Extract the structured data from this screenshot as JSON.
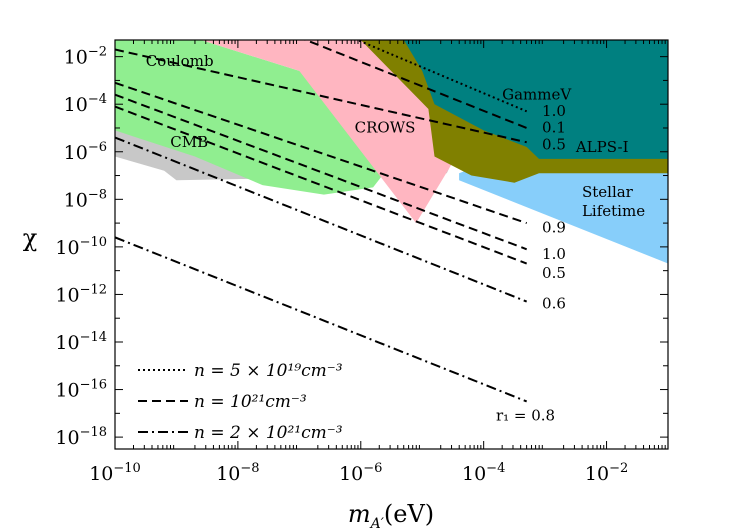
{
  "chart_data": {
    "type": "line",
    "xlabel": "m_{A'}(eV)",
    "ylabel": "χ",
    "xscale": "log",
    "yscale": "log",
    "xlim_log10": [
      -10,
      -1
    ],
    "ylim_log10": [
      -18.5,
      -1.3
    ],
    "xticks": [
      {
        "exp": -10,
        "base": "10",
        "sup": "−10"
      },
      {
        "exp": -8,
        "base": "10",
        "sup": "−8"
      },
      {
        "exp": -6,
        "base": "10",
        "sup": "−6"
      },
      {
        "exp": -4,
        "base": "10",
        "sup": "−4"
      },
      {
        "exp": -2,
        "base": "10",
        "sup": "−2"
      }
    ],
    "yticks": [
      {
        "exp": -2,
        "base": "10",
        "sup": "−2"
      },
      {
        "exp": -4,
        "base": "10",
        "sup": "−4"
      },
      {
        "exp": -6,
        "base": "10",
        "sup": "−6"
      },
      {
        "exp": -8,
        "base": "10",
        "sup": "−8"
      },
      {
        "exp": -10,
        "base": "10",
        "sup": "−10"
      },
      {
        "exp": -12,
        "base": "10",
        "sup": "−12"
      },
      {
        "exp": -14,
        "base": "10",
        "sup": "−14"
      },
      {
        "exp": -16,
        "base": "10",
        "sup": "−16"
      },
      {
        "exp": -18,
        "base": "10",
        "sup": "−18"
      }
    ],
    "regions": [
      {
        "name": "Stellar Lifetime",
        "color": "#87cefa",
        "label": [
          "Stellar",
          "Lifetime"
        ],
        "label_at": [
          -2.4,
          -7.9
        ],
        "polygon": [
          [
            -4.4,
            -6.9
          ],
          [
            -3.8,
            -6.3
          ],
          [
            -3.0,
            -6.0
          ],
          [
            -1.0,
            -6.0
          ],
          [
            -1.0,
            -10.7
          ],
          [
            -4.4,
            -7.2
          ]
        ]
      },
      {
        "name": "CMB",
        "color": "#c8c8c8",
        "label": [
          "CMB"
        ],
        "label_at": [
          -9.1,
          -5.8
        ],
        "polygon": [
          [
            -10,
            -3.6
          ],
          [
            -9.0,
            -3.3
          ],
          [
            -6.0,
            -3.7
          ],
          [
            -4.9,
            -4.2
          ],
          [
            -4.4,
            -5.8
          ],
          [
            -4.6,
            -6.9
          ],
          [
            -7.0,
            -7.1
          ],
          [
            -9.0,
            -7.2
          ],
          [
            -9.2,
            -6.8
          ],
          [
            -10,
            -6.2
          ]
        ]
      },
      {
        "name": "Coulomb",
        "color": "#90ee90",
        "label": [
          "Coulomb"
        ],
        "label_at": [
          -9.5,
          -2.4
        ],
        "polygon": [
          [
            -10,
            -1.3
          ],
          [
            -8.6,
            -1.3
          ],
          [
            -7.0,
            -2.6
          ],
          [
            -6.0,
            -4.5
          ],
          [
            -5.5,
            -6.5
          ],
          [
            -5.8,
            -7.5
          ],
          [
            -6.6,
            -7.8
          ],
          [
            -7.6,
            -7.4
          ],
          [
            -8.7,
            -6.2
          ],
          [
            -10,
            -5.1
          ]
        ]
      },
      {
        "name": "CROWS",
        "color": "#ffb6c1",
        "label": [
          "CROWS"
        ],
        "label_at": [
          -6.1,
          -5.2
        ],
        "polygon": [
          [
            -8.6,
            -1.3
          ],
          [
            -6.0,
            -1.3
          ],
          [
            -4.8,
            -2.6
          ],
          [
            -4.2,
            -4.6
          ],
          [
            -4.4,
            -6.0
          ],
          [
            -5.1,
            -9.0
          ],
          [
            -7.0,
            -2.6
          ]
        ]
      },
      {
        "name": "ALPS-I",
        "color": "#808000",
        "label": [
          "ALPS-I"
        ],
        "label_at": [
          -2.5,
          -6.0
        ],
        "polygon": [
          [
            -6.0,
            -1.3
          ],
          [
            -1.0,
            -1.3
          ],
          [
            -1.0,
            -6.9
          ],
          [
            -3.1,
            -6.9
          ],
          [
            -3.5,
            -7.3
          ],
          [
            -4.2,
            -7.0
          ],
          [
            -4.8,
            -6.2
          ],
          [
            -4.9,
            -4.2
          ]
        ]
      },
      {
        "name": "GammeV",
        "color": "#008080",
        "label": [
          "GammeV"
        ],
        "label_at": [
          -3.7,
          -3.8
        ],
        "polygon": [
          [
            -5.3,
            -1.3
          ],
          [
            -1.0,
            -1.3
          ],
          [
            -1.0,
            -6.3
          ],
          [
            -3.1,
            -6.3
          ],
          [
            -3.3,
            -5.8
          ],
          [
            -4.0,
            -5.1
          ],
          [
            -4.8,
            -4.0
          ],
          [
            -5.0,
            -2.6
          ]
        ]
      }
    ],
    "series": [
      {
        "style": "dotted",
        "label": "1.0",
        "label_at": [
          -3.05,
          -4.5
        ],
        "x": [
          -10,
          -3.3
        ],
        "y": [
          3.0,
          -4.3
        ]
      },
      {
        "style": "dashed",
        "label": "0.1",
        "label_at": [
          -3.05,
          -5.2
        ],
        "x": [
          -10,
          -3.3
        ],
        "y": [
          1.9,
          -5.0
        ]
      },
      {
        "style": "dashed",
        "label": "0.5",
        "label_at": [
          -3.05,
          -5.9
        ],
        "x": [
          -10,
          -3.3
        ],
        "y": [
          -1.7,
          -5.6
        ]
      },
      {
        "style": "dashed",
        "label": "0.9",
        "label_at": [
          -3.05,
          -9.4
        ],
        "x": [
          -10,
          -3.3
        ],
        "y": [
          -3.1,
          -9.0
        ]
      },
      {
        "style": "dashed",
        "label": "1.0",
        "label_at": [
          -3.05,
          -10.5
        ],
        "x": [
          -10,
          -3.3
        ],
        "y": [
          -3.6,
          -10.1
        ]
      },
      {
        "style": "dashed",
        "label": "0.5",
        "label_at": [
          -3.05,
          -11.3
        ],
        "x": [
          -10,
          -3.3
        ],
        "y": [
          -4.1,
          -10.7
        ]
      },
      {
        "style": "dashdot",
        "label": "0.6",
        "label_at": [
          -3.05,
          -12.6
        ],
        "x": [
          -10,
          -3.3
        ],
        "y": [
          -5.4,
          -12.3
        ]
      },
      {
        "style": "dashdot",
        "label": "r₁ = 0.8",
        "label_at": [
          -3.8,
          -17.3
        ],
        "x": [
          -10,
          -3.3
        ],
        "y": [
          -9.6,
          -16.5
        ]
      }
    ],
    "legend": {
      "placement": "bottom-left",
      "entries": [
        {
          "style": "dotted",
          "label": "n = 5 × 10¹⁹cm⁻³"
        },
        {
          "style": "dashed",
          "label": "n = 10²¹cm⁻³"
        },
        {
          "style": "dashdot",
          "label": "n = 2 × 10²¹cm⁻³"
        }
      ]
    },
    "grid": false
  }
}
